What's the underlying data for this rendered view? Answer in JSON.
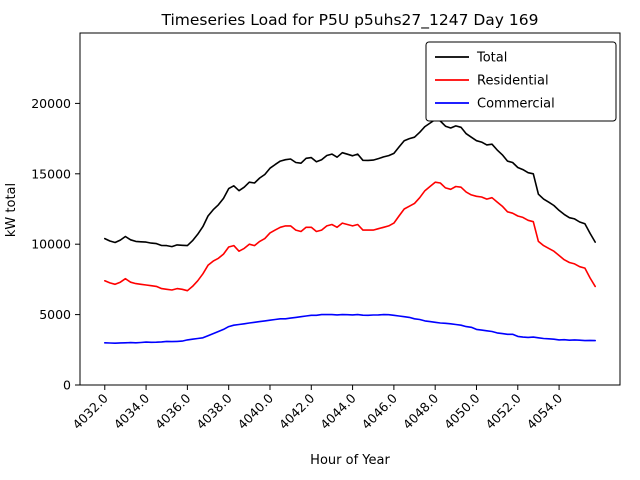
{
  "chart_data": {
    "type": "line",
    "title": "Timeseries Load for P5U p5uhs27_1247  Day 169",
    "xlabel": "Hour of Year",
    "ylabel": "kW total",
    "xlim": [
      4030.8,
      4056.95
    ],
    "ylim": [
      0,
      25000
    ],
    "grid": false,
    "legend": {
      "position": "upper right",
      "border_color": "#000000",
      "background": "#ffffff"
    },
    "xticks": {
      "values": [
        4032,
        4034,
        4036,
        4038,
        4040,
        4042,
        4044,
        4046,
        4048,
        4050,
        4052,
        4054
      ],
      "labels": [
        "4032.0",
        "4034.0",
        "4036.0",
        "4038.0",
        "4040.0",
        "4042.0",
        "4044.0",
        "4046.0",
        "4048.0",
        "4050.0",
        "4052.0",
        "4054.0"
      ]
    },
    "yticks": {
      "values": [
        0,
        5000,
        10000,
        15000,
        20000
      ],
      "labels": [
        "0",
        "5000",
        "10000",
        "15000",
        "20000"
      ]
    },
    "x": [
      4032.0,
      4032.25,
      4032.5,
      4032.75,
      4033.0,
      4033.25,
      4033.5,
      4033.75,
      4034.0,
      4034.25,
      4034.5,
      4034.75,
      4035.0,
      4035.25,
      4035.5,
      4035.75,
      4036.0,
      4036.25,
      4036.5,
      4036.75,
      4037.0,
      4037.25,
      4037.5,
      4037.75,
      4038.0,
      4038.25,
      4038.5,
      4038.75,
      4039.0,
      4039.25,
      4039.5,
      4039.75,
      4040.0,
      4040.25,
      4040.5,
      4040.75,
      4041.0,
      4041.25,
      4041.5,
      4041.75,
      4042.0,
      4042.25,
      4042.5,
      4042.75,
      4043.0,
      4043.25,
      4043.5,
      4043.75,
      4044.0,
      4044.25,
      4044.5,
      4044.75,
      4045.0,
      4045.25,
      4045.5,
      4045.75,
      4046.0,
      4046.25,
      4046.5,
      4046.75,
      4047.0,
      4047.25,
      4047.5,
      4047.75,
      4048.0,
      4048.25,
      4048.5,
      4048.75,
      4049.0,
      4049.25,
      4049.5,
      4049.75,
      4050.0,
      4050.25,
      4050.5,
      4050.75,
      4051.0,
      4051.25,
      4051.5,
      4051.75,
      4052.0,
      4052.25,
      4052.5,
      4052.75,
      4053.0,
      4053.25,
      4053.5,
      4053.75,
      4054.0,
      4054.25,
      4054.5,
      4054.75,
      4055.0,
      4055.25,
      4055.5,
      4055.75
    ],
    "series": [
      {
        "name": "Total",
        "color": "#000000",
        "values": [
          10400,
          10230,
          10120,
          10290,
          10550,
          10310,
          10200,
          10170,
          10150,
          10080,
          10040,
          9910,
          9900,
          9830,
          9950,
          9920,
          9900,
          10250,
          10700,
          11250,
          12000,
          12450,
          12800,
          13250,
          13950,
          14150,
          13800,
          14050,
          14400,
          14350,
          14700,
          14950,
          15400,
          15650,
          15900,
          16000,
          16050,
          15800,
          15750,
          16100,
          16150,
          15850,
          16000,
          16300,
          16400,
          16180,
          16500,
          16390,
          16280,
          16400,
          15960,
          15950,
          15970,
          16080,
          16200,
          16290,
          16450,
          16900,
          17350,
          17500,
          17600,
          17950,
          18350,
          18600,
          18850,
          18750,
          18380,
          18250,
          18400,
          18300,
          17850,
          17600,
          17350,
          17250,
          17050,
          17100,
          16700,
          16350,
          15900,
          15800,
          15450,
          15300,
          15080,
          15000,
          13550,
          13200,
          12980,
          12750,
          12400,
          12120,
          11880,
          11800,
          11580,
          11450,
          10770,
          10150
        ]
      },
      {
        "name": "Residential",
        "color": "#ff0000",
        "values": [
          7400,
          7250,
          7150,
          7300,
          7550,
          7300,
          7200,
          7150,
          7100,
          7050,
          7000,
          6850,
          6800,
          6750,
          6850,
          6800,
          6700,
          7000,
          7400,
          7900,
          8500,
          8800,
          9000,
          9300,
          9800,
          9900,
          9500,
          9700,
          10000,
          9900,
          10200,
          10400,
          10800,
          11000,
          11200,
          11300,
          11300,
          11000,
          10900,
          11200,
          11200,
          10900,
          11000,
          11300,
          11400,
          11200,
          11500,
          11400,
          11300,
          11400,
          11000,
          11000,
          11000,
          11100,
          11200,
          11300,
          11500,
          12000,
          12500,
          12700,
          12900,
          13300,
          13800,
          14100,
          14400,
          14350,
          14000,
          13900,
          14100,
          14050,
          13700,
          13500,
          13400,
          13350,
          13200,
          13300,
          13000,
          12700,
          12300,
          12200,
          12000,
          11900,
          11700,
          11600,
          10200,
          9900,
          9700,
          9500,
          9200,
          8900,
          8700,
          8600,
          8400,
          8300,
          7600,
          7000
        ]
      },
      {
        "name": "Commercial",
        "color": "#0000ff",
        "values": [
          3000,
          2980,
          2970,
          2990,
          3000,
          3010,
          3000,
          3020,
          3050,
          3030,
          3040,
          3060,
          3100,
          3080,
          3100,
          3120,
          3200,
          3250,
          3300,
          3350,
          3500,
          3650,
          3800,
          3950,
          4150,
          4250,
          4300,
          4350,
          4400,
          4450,
          4500,
          4550,
          4600,
          4650,
          4700,
          4700,
          4750,
          4800,
          4850,
          4900,
          4950,
          4950,
          5000,
          5000,
          5000,
          4980,
          5000,
          4990,
          4980,
          5000,
          4960,
          4950,
          4970,
          4980,
          5000,
          4990,
          4950,
          4900,
          4850,
          4800,
          4700,
          4650,
          4550,
          4500,
          4450,
          4400,
          4380,
          4350,
          4300,
          4250,
          4150,
          4100,
          3950,
          3900,
          3850,
          3800,
          3700,
          3650,
          3600,
          3600,
          3450,
          3400,
          3380,
          3400,
          3350,
          3300,
          3280,
          3250,
          3200,
          3220,
          3180,
          3200,
          3180,
          3150,
          3170,
          3150
        ]
      }
    ]
  }
}
